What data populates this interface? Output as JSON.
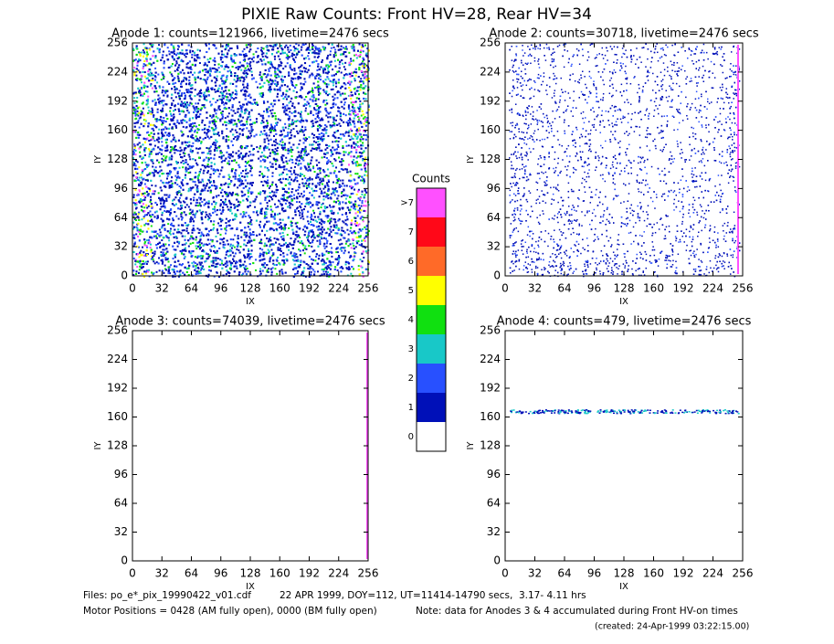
{
  "title": "PIXIE Raw Counts:  Front HV=28, Rear HV=34",
  "panels": [
    {
      "title": "Anode 1: counts=121966, livetime=2476 secs",
      "xlabel": "IX",
      "ylabel": "IY",
      "xlim": [
        0,
        256
      ],
      "ylim": [
        0,
        256
      ],
      "xticks": [
        0,
        32,
        64,
        96,
        128,
        160,
        192,
        224,
        256
      ],
      "yticks": [
        0,
        32,
        64,
        96,
        128,
        160,
        192,
        224,
        256
      ]
    },
    {
      "title": "Anode 2: counts=30718, livetime=2476 secs",
      "xlabel": "IX",
      "ylabel": "IY",
      "xlim": [
        0,
        256
      ],
      "ylim": [
        0,
        256
      ],
      "xticks": [
        0,
        32,
        64,
        96,
        128,
        160,
        192,
        224,
        256
      ],
      "yticks": [
        0,
        32,
        64,
        96,
        128,
        160,
        192,
        224,
        256
      ]
    },
    {
      "title": "Anode 3: counts=74039, livetime=2476 secs",
      "xlabel": "IX",
      "ylabel": "IY",
      "xlim": [
        0,
        256
      ],
      "ylim": [
        0,
        256
      ],
      "xticks": [
        0,
        32,
        64,
        96,
        128,
        160,
        192,
        224,
        256
      ],
      "yticks": [
        0,
        32,
        64,
        96,
        128,
        160,
        192,
        224,
        256
      ]
    },
    {
      "title": "Anode 4: counts=479, livetime=2476 secs",
      "xlabel": "IX",
      "ylabel": "IY",
      "xlim": [
        0,
        256
      ],
      "ylim": [
        0,
        256
      ],
      "xticks": [
        0,
        32,
        64,
        96,
        128,
        160,
        192,
        224,
        256
      ],
      "yticks": [
        0,
        32,
        64,
        96,
        128,
        160,
        192,
        224,
        256
      ]
    }
  ],
  "colorbar": {
    "title": "Counts",
    "labels": [
      0,
      1,
      2,
      3,
      4,
      5,
      6,
      7,
      ">7"
    ],
    "colors": [
      "#ffffff",
      "#0010b8",
      "#2850ff",
      "#18c8c8",
      "#10e010",
      "#ffff00",
      "#ff6a28",
      "#ff0818",
      "#ff50ff"
    ]
  },
  "footer": {
    "files": "Files: po_e*_pix_19990422_v01.cdf",
    "date": "22 APR 1999, DOY=112, UT=11414-14790 secs,  3.17- 4.11 hrs",
    "motor": "Motor Positions = 0428 (AM fully open), 0000 (BM fully open)",
    "note": "Note: data for Anodes 3 & 4 accumulated during Front HV-on times",
    "created": "(created: 24-Apr-1999 03:22:15.00)"
  }
}
